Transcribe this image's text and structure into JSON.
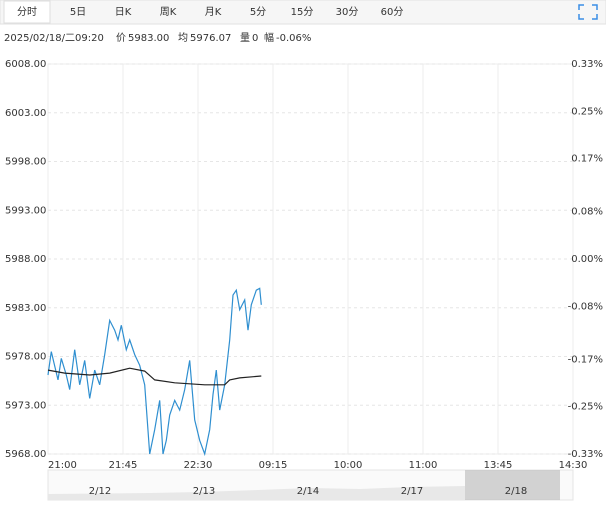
{
  "tabs": [
    "分时",
    "5日",
    "日K",
    "周K",
    "月K",
    "5分",
    "15分",
    "30分",
    "60分"
  ],
  "info": {
    "time": "2025/02/18/二09:20",
    "price_label": "价",
    "price": "5983.00",
    "avg_label": "均",
    "avg": "5976.07",
    "vol_label": "量",
    "vol": "0",
    "chg_label": "幅",
    "chg": "-0.06%"
  },
  "navigator_dates": [
    "2/12",
    "2/13",
    "2/14",
    "2/17",
    "2/18"
  ],
  "chart_data": {
    "type": "line",
    "xlim": [
      0,
      315
    ],
    "xticks": [
      {
        "value": 0,
        "label": "21:00"
      },
      {
        "value": 45,
        "label": "21:45"
      },
      {
        "value": 90,
        "label": "22:30"
      },
      {
        "value": 135,
        "label": "09:15"
      },
      {
        "value": 180,
        "label": "10:00"
      },
      {
        "value": 225,
        "label": "11:00"
      },
      {
        "value": 270,
        "label": "13:45"
      },
      {
        "value": 315,
        "label": "14:30"
      }
    ],
    "ylim": [
      5968,
      6008
    ],
    "yticks": [
      {
        "value": 6008,
        "label": "6008.00"
      },
      {
        "value": 6003,
        "label": "6003.00"
      },
      {
        "value": 5998,
        "label": "5998.00"
      },
      {
        "value": 5993,
        "label": "5993.00"
      },
      {
        "value": 5988,
        "label": "5988.00"
      },
      {
        "value": 5983,
        "label": "5983.00"
      },
      {
        "value": 5978,
        "label": "5978.00"
      },
      {
        "value": 5973,
        "label": "5973.00"
      },
      {
        "value": 5968,
        "label": "5968.00"
      }
    ],
    "y2lim": [
      -0.33,
      0.33
    ],
    "y2ticks": [
      {
        "value": 0.33,
        "label": "0.33%"
      },
      {
        "value": 0.25,
        "label": "0.25%"
      },
      {
        "value": 0.17,
        "label": "0.17%"
      },
      {
        "value": 0.08,
        "label": "0.08%"
      },
      {
        "value": 0,
        "label": "0.00%"
      },
      {
        "value": -0.08,
        "label": "-0.08%"
      },
      {
        "value": -0.17,
        "label": "-0.17%"
      },
      {
        "value": -0.25,
        "label": "-0.25%"
      },
      {
        "value": -0.33,
        "label": "-0.33%"
      }
    ],
    "grid": true,
    "up_color": "#e02020",
    "down_color": "#2a9a2a",
    "flat_color": "#333333",
    "series": [
      {
        "color": "#2f8fd0",
        "x": [
          0,
          2,
          6,
          8,
          11,
          13,
          16,
          19,
          22,
          25,
          28,
          31,
          34,
          37,
          40,
          42,
          44,
          47,
          49,
          52,
          55,
          58,
          61,
          64,
          67,
          69,
          71,
          73,
          76,
          79,
          82,
          85,
          88,
          91,
          94,
          97,
          99,
          101,
          103,
          106,
          109,
          111,
          113,
          115,
          118,
          120,
          122,
          125,
          127,
          128
        ],
        "values": [
          5976.1,
          5978.5,
          5975.6,
          5977.8,
          5976.1,
          5974.6,
          5978.7,
          5975.1,
          5977.6,
          5973.7,
          5976.6,
          5975.1,
          5978.2,
          5981.7,
          5980.7,
          5979.7,
          5981.2,
          5978.7,
          5979.7,
          5978.2,
          5977.1,
          5975.1,
          5968,
          5970.5,
          5973.5,
          5968,
          5969.4,
          5972,
          5973.5,
          5972.5,
          5974.6,
          5977.6,
          5971.5,
          5969.4,
          5968,
          5970.5,
          5974.1,
          5976.6,
          5972.5,
          5975.1,
          5979.7,
          5984.3,
          5984.8,
          5982.8,
          5983.8,
          5980.7,
          5983.3,
          5984.8,
          5985,
          5983.3
        ]
      },
      {
        "color": "#222222",
        "x": [
          0,
          10,
          25,
          37,
          49,
          58,
          64,
          76,
          94,
          106,
          109,
          115,
          128
        ],
        "values": [
          5976.6,
          5976.3,
          5976.1,
          5976.3,
          5976.8,
          5976.5,
          5975.6,
          5975.3,
          5975.1,
          5975.1,
          5975.6,
          5975.8,
          5976.0
        ]
      }
    ]
  }
}
